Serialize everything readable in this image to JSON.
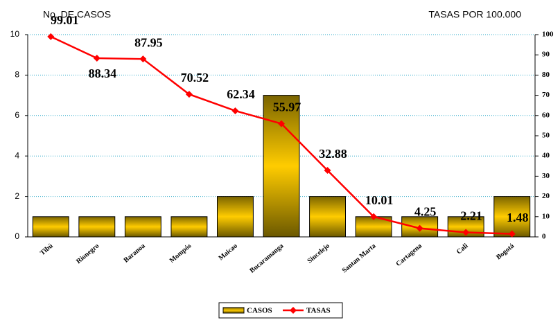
{
  "chart_data": {
    "type": "bar",
    "y_title": "No. DE CASOS",
    "y2_title": "TASAS POR 100.000",
    "categories": [
      "Tibú",
      "Rionegro",
      "Baranoa",
      "Mompós",
      "Maicao",
      "Bucaramanga",
      "Sincelejo",
      "Santan Marta",
      "Cartagena",
      "Cali",
      "Bogotá"
    ],
    "series": [
      {
        "name": "CASOS",
        "type": "bar",
        "color": "#ffcc00",
        "values": [
          1,
          1,
          1,
          1,
          2,
          7,
          2,
          1,
          1,
          1,
          2
        ]
      },
      {
        "name": "TASAS",
        "type": "line",
        "axis": "y2",
        "color": "#ff0000",
        "values": [
          99.01,
          88.34,
          87.95,
          70.52,
          62.34,
          55.97,
          32.88,
          10.01,
          4.25,
          2.21,
          1.48
        ]
      }
    ],
    "ylim": [
      0,
      10
    ],
    "yticks": [
      0,
      2,
      4,
      6,
      8,
      10
    ],
    "y2lim": [
      0,
      100
    ],
    "y2ticks": [
      0,
      10,
      20,
      30,
      40,
      50,
      60,
      70,
      80,
      90,
      100
    ],
    "grid": true,
    "legend": "bottom"
  }
}
